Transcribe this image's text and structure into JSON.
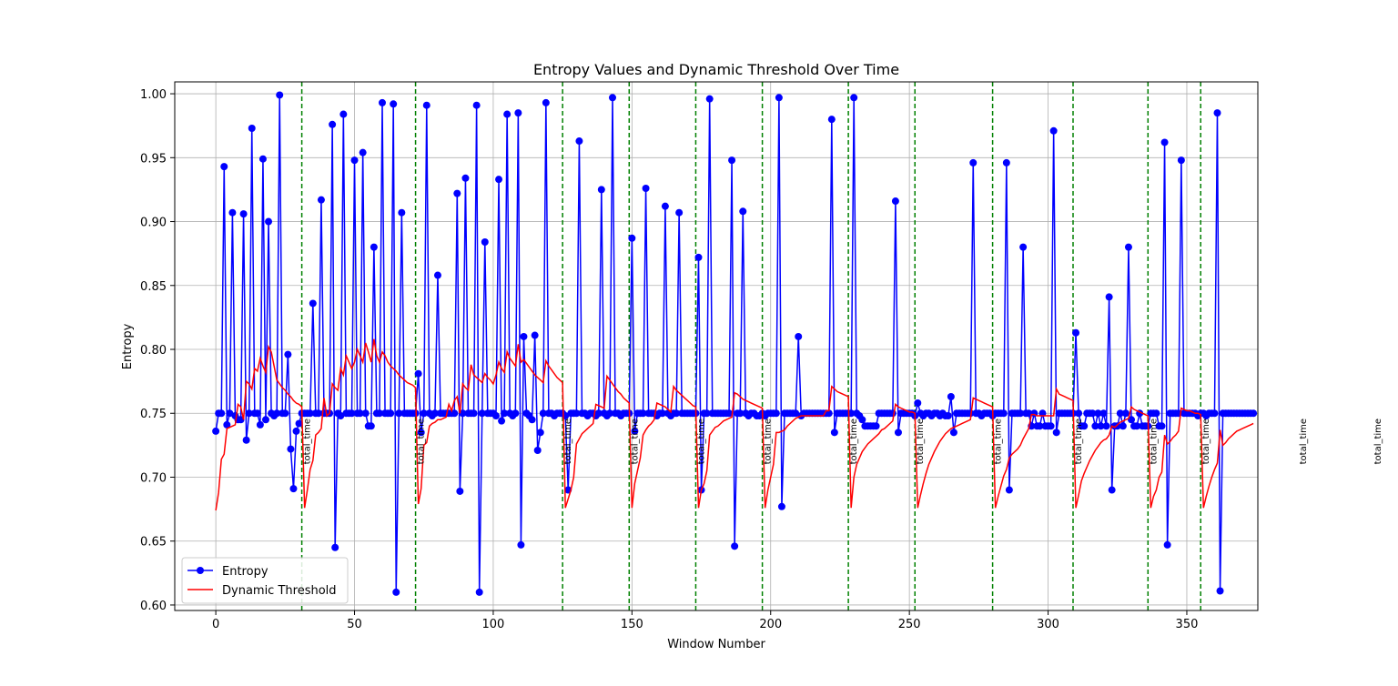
{
  "chart_data": {
    "type": "line",
    "title": "Entropy Values and Dynamic Threshold Over Time",
    "x_label": "Window Number",
    "y_label": "Entropy",
    "xlim": [
      -14.8,
      375.6
    ],
    "ylim": [
      0.5957,
      1.0093
    ],
    "xticks": [
      0,
      50,
      100,
      150,
      200,
      250,
      300,
      350
    ],
    "yticks": [
      {
        "value": 0.6,
        "label": "0.60"
      },
      {
        "value": 0.65,
        "label": "0.65"
      },
      {
        "value": 0.7,
        "label": "0.70"
      },
      {
        "value": 0.75,
        "label": "0.75"
      },
      {
        "value": 0.8,
        "label": "0.80"
      },
      {
        "value": 0.85,
        "label": "0.85"
      },
      {
        "value": 0.9,
        "label": "0.90"
      },
      {
        "value": 0.95,
        "label": "0.95"
      },
      {
        "value": 1.0,
        "label": "1.00"
      }
    ],
    "grid": true,
    "legend": "lower left",
    "x": [
      0,
      1,
      2,
      3,
      4,
      5,
      6,
      7,
      8,
      9,
      10,
      11,
      12,
      13,
      14,
      15,
      16,
      17,
      18,
      19,
      20,
      21,
      22,
      23,
      24,
      25,
      26,
      27,
      28,
      29,
      30,
      31,
      32,
      33,
      34,
      35,
      36,
      37,
      38,
      39,
      40,
      41,
      42,
      43,
      44,
      45,
      46,
      47,
      48,
      49,
      50,
      51,
      52,
      53,
      54,
      55,
      56,
      57,
      58,
      59,
      60,
      61,
      62,
      63,
      64,
      65,
      66,
      67,
      68,
      69,
      70,
      71,
      72,
      73,
      74,
      75,
      76,
      77,
      78,
      79,
      80,
      81,
      82,
      83,
      84,
      85,
      86,
      87,
      88,
      89,
      90,
      91,
      92,
      93,
      94,
      95,
      96,
      97,
      98,
      99,
      100,
      101,
      102,
      103,
      104,
      105,
      106,
      107,
      108,
      109,
      110,
      111,
      112,
      113,
      114,
      115,
      116,
      117,
      118,
      119,
      120,
      121,
      122,
      123,
      124,
      125,
      126,
      127,
      128,
      129,
      130,
      131,
      132,
      133,
      134,
      135,
      136,
      137,
      138,
      139,
      140,
      141,
      142,
      143,
      144,
      145,
      146,
      147,
      148,
      149,
      150,
      151,
      152,
      153,
      154,
      155,
      156,
      157,
      158,
      159,
      160,
      161,
      162,
      163,
      164,
      165,
      166,
      167,
      168,
      169,
      170,
      171,
      172,
      173,
      174,
      175,
      176,
      177,
      178,
      179,
      180,
      181,
      182,
      183,
      184,
      185,
      186,
      187,
      188,
      189,
      190,
      191,
      192,
      193,
      194,
      195,
      196,
      197,
      198,
      199,
      200,
      201,
      202,
      203,
      204,
      205,
      206,
      207,
      208,
      209,
      210,
      211,
      212,
      213,
      214,
      215,
      216,
      217,
      218,
      219,
      220,
      221,
      222,
      223,
      224,
      225,
      226,
      227,
      228,
      229,
      230,
      231,
      232,
      233,
      234,
      235,
      236,
      237,
      238,
      239,
      240,
      241,
      242,
      243,
      244,
      245,
      246,
      247,
      248,
      249,
      250,
      251,
      252,
      253,
      254,
      255,
      256,
      257,
      258,
      259,
      260,
      261,
      262,
      263,
      264,
      265,
      266,
      267,
      268,
      269,
      270,
      271,
      272,
      273,
      274,
      275,
      276,
      277,
      278,
      279,
      280,
      281,
      282,
      283,
      284,
      285,
      286,
      287,
      288,
      289,
      290,
      291,
      292,
      293,
      294,
      295,
      296,
      297,
      298,
      299,
      300,
      301,
      302,
      303,
      304,
      305,
      306,
      307,
      308,
      309,
      310,
      311,
      312,
      313,
      314,
      315,
      316,
      317,
      318,
      319,
      320,
      321,
      322,
      323,
      324,
      325,
      326,
      327,
      328,
      329,
      330,
      331,
      332,
      333,
      334,
      335,
      336,
      337,
      338,
      339,
      340,
      341,
      342,
      343,
      344,
      345,
      346,
      347,
      348,
      349,
      350,
      351,
      352,
      353,
      354,
      355,
      356,
      357,
      358,
      359,
      360,
      361,
      362,
      363,
      364,
      365,
      366,
      367,
      368,
      369,
      370,
      371,
      372,
      373,
      374
    ],
    "series": [
      {
        "name": "Entropy",
        "color": "#0000ff",
        "marker": true,
        "values": [
          0.736,
          0.75,
          0.75,
          0.943,
          0.741,
          0.75,
          0.907,
          0.748,
          0.745,
          0.745,
          0.906,
          0.729,
          0.75,
          0.973,
          0.75,
          0.75,
          0.741,
          0.949,
          0.745,
          0.9,
          0.75,
          0.748,
          0.75,
          0.999,
          0.75,
          0.75,
          0.796,
          0.722,
          0.691,
          0.736,
          0.742,
          0.75,
          0.75,
          0.75,
          0.75,
          0.836,
          0.75,
          0.75,
          0.917,
          0.75,
          0.75,
          0.75,
          0.976,
          0.645,
          0.75,
          0.748,
          0.984,
          0.75,
          0.75,
          0.75,
          0.948,
          0.75,
          0.75,
          0.954,
          0.75,
          0.74,
          0.74,
          0.88,
          0.75,
          0.75,
          0.993,
          0.75,
          0.75,
          0.75,
          0.992,
          0.61,
          0.75,
          0.907,
          0.75,
          0.75,
          0.75,
          0.75,
          0.75,
          0.781,
          0.735,
          0.75,
          0.991,
          0.75,
          0.748,
          0.75,
          0.858,
          0.75,
          0.75,
          0.75,
          0.75,
          0.75,
          0.75,
          0.922,
          0.689,
          0.75,
          0.934,
          0.75,
          0.75,
          0.75,
          0.991,
          0.61,
          0.75,
          0.884,
          0.75,
          0.75,
          0.75,
          0.748,
          0.933,
          0.744,
          0.75,
          0.984,
          0.75,
          0.748,
          0.75,
          0.985,
          0.647,
          0.81,
          0.75,
          0.748,
          0.745,
          0.811,
          0.721,
          0.735,
          0.75,
          0.993,
          0.75,
          0.75,
          0.748,
          0.75,
          0.75,
          0.75,
          0.748,
          0.69,
          0.75,
          0.75,
          0.75,
          0.963,
          0.75,
          0.75,
          0.748,
          0.75,
          0.75,
          0.748,
          0.75,
          0.925,
          0.75,
          0.748,
          0.75,
          0.997,
          0.75,
          0.75,
          0.748,
          0.75,
          0.75,
          0.75,
          0.887,
          0.736,
          0.75,
          0.75,
          0.75,
          0.926,
          0.75,
          0.75,
          0.75,
          0.748,
          0.75,
          0.75,
          0.912,
          0.75,
          0.748,
          0.75,
          0.75,
          0.907,
          0.75,
          0.75,
          0.75,
          0.75,
          0.75,
          0.75,
          0.872,
          0.69,
          0.75,
          0.75,
          0.996,
          0.75,
          0.75,
          0.75,
          0.75,
          0.75,
          0.75,
          0.75,
          0.948,
          0.646,
          0.75,
          0.75,
          0.908,
          0.75,
          0.748,
          0.75,
          0.75,
          0.748,
          0.748,
          0.75,
          0.748,
          0.75,
          0.75,
          0.75,
          0.75,
          0.997,
          0.677,
          0.75,
          0.75,
          0.75,
          0.75,
          0.75,
          0.81,
          0.748,
          0.75,
          0.75,
          0.75,
          0.75,
          0.75,
          0.75,
          0.75,
          0.75,
          0.75,
          0.75,
          0.98,
          0.735,
          0.75,
          0.75,
          0.75,
          0.75,
          0.75,
          0.75,
          0.997,
          0.75,
          0.748,
          0.745,
          0.74,
          0.74,
          0.74,
          0.74,
          0.74,
          0.75,
          0.75,
          0.75,
          0.75,
          0.75,
          0.75,
          0.916,
          0.735,
          0.75,
          0.75,
          0.75,
          0.75,
          0.75,
          0.748,
          0.758,
          0.75,
          0.748,
          0.75,
          0.75,
          0.748,
          0.75,
          0.75,
          0.748,
          0.75,
          0.748,
          0.748,
          0.763,
          0.735,
          0.75,
          0.75,
          0.75,
          0.75,
          0.75,
          0.75,
          0.946,
          0.75,
          0.75,
          0.748,
          0.75,
          0.75,
          0.75,
          0.748,
          0.75,
          0.75,
          0.75,
          0.75,
          0.946,
          0.69,
          0.75,
          0.75,
          0.75,
          0.75,
          0.88,
          0.75,
          0.75,
          0.74,
          0.75,
          0.74,
          0.74,
          0.75,
          0.74,
          0.74,
          0.74,
          0.971,
          0.735,
          0.75,
          0.75,
          0.75,
          0.75,
          0.75,
          0.75,
          0.813,
          0.75,
          0.74,
          0.74,
          0.75,
          0.75,
          0.75,
          0.74,
          0.75,
          0.74,
          0.75,
          0.74,
          0.841,
          0.69,
          0.74,
          0.74,
          0.75,
          0.74,
          0.75,
          0.88,
          0.745,
          0.74,
          0.74,
          0.75,
          0.74,
          0.74,
          0.74,
          0.75,
          0.75,
          0.75,
          0.74,
          0.74,
          0.962,
          0.647,
          0.75,
          0.75,
          0.75,
          0.75,
          0.948,
          0.75,
          0.75,
          0.75,
          0.75,
          0.75,
          0.748,
          0.75,
          0.75,
          0.748,
          0.75,
          0.75,
          0.75,
          0.985,
          0.611,
          0.75,
          0.75,
          0.75,
          0.75,
          0.75,
          0.75,
          0.75,
          0.75,
          0.75,
          0.75,
          0.75,
          0.75
        ]
      },
      {
        "name": "Dynamic Threshold",
        "color": "#ff0000",
        "marker": false,
        "values": [
          0.674,
          0.688,
          0.714,
          0.718,
          0.738,
          0.739,
          0.74,
          0.741,
          0.757,
          0.755,
          0.745,
          0.775,
          0.773,
          0.769,
          0.785,
          0.783,
          0.793,
          0.787,
          0.782,
          0.802,
          0.798,
          0.787,
          0.776,
          0.773,
          0.77,
          0.768,
          0.765,
          0.763,
          0.76,
          0.758,
          0.757,
          0.755,
          0.676,
          0.69,
          0.706,
          0.713,
          0.733,
          0.735,
          0.738,
          0.762,
          0.748,
          0.75,
          0.773,
          0.77,
          0.768,
          0.785,
          0.78,
          0.795,
          0.79,
          0.785,
          0.79,
          0.8,
          0.795,
          0.79,
          0.805,
          0.798,
          0.79,
          0.808,
          0.795,
          0.79,
          0.798,
          0.795,
          0.79,
          0.787,
          0.785,
          0.783,
          0.78,
          0.778,
          0.776,
          0.774,
          0.773,
          0.772,
          0.77,
          0.679,
          0.691,
          0.725,
          0.727,
          0.74,
          0.742,
          0.743,
          0.745,
          0.745,
          0.746,
          0.747,
          0.757,
          0.752,
          0.76,
          0.763,
          0.75,
          0.773,
          0.77,
          0.768,
          0.788,
          0.78,
          0.778,
          0.776,
          0.774,
          0.781,
          0.778,
          0.776,
          0.773,
          0.78,
          0.79,
          0.785,
          0.782,
          0.798,
          0.793,
          0.79,
          0.787,
          0.804,
          0.79,
          0.792,
          0.789,
          0.786,
          0.783,
          0.78,
          0.778,
          0.776,
          0.774,
          0.791,
          0.787,
          0.784,
          0.781,
          0.778,
          0.776,
          0.774,
          0.676,
          0.683,
          0.69,
          0.7,
          0.726,
          0.73,
          0.734,
          0.736,
          0.738,
          0.74,
          0.742,
          0.757,
          0.756,
          0.755,
          0.754,
          0.779,
          0.776,
          0.773,
          0.77,
          0.767,
          0.765,
          0.762,
          0.76,
          0.758,
          0.676,
          0.695,
          0.705,
          0.715,
          0.733,
          0.737,
          0.74,
          0.742,
          0.745,
          0.758,
          0.757,
          0.756,
          0.755,
          0.753,
          0.751,
          0.771,
          0.768,
          0.766,
          0.764,
          0.762,
          0.76,
          0.758,
          0.756,
          0.755,
          0.676,
          0.69,
          0.695,
          0.705,
          0.733,
          0.736,
          0.739,
          0.74,
          0.742,
          0.744,
          0.745,
          0.746,
          0.747,
          0.766,
          0.765,
          0.763,
          0.761,
          0.76,
          0.759,
          0.758,
          0.757,
          0.756,
          0.755,
          0.754,
          0.676,
          0.69,
          0.7,
          0.71,
          0.735,
          0.735,
          0.736,
          0.737,
          0.74,
          0.742,
          0.744,
          0.746,
          0.747,
          0.748,
          0.748,
          0.748,
          0.748,
          0.748,
          0.748,
          0.748,
          0.748,
          0.748,
          0.752,
          0.752,
          0.771,
          0.769,
          0.767,
          0.766,
          0.765,
          0.764,
          0.763,
          0.676,
          0.7,
          0.71,
          0.715,
          0.72,
          0.723,
          0.726,
          0.728,
          0.73,
          0.732,
          0.734,
          0.737,
          0.738,
          0.74,
          0.742,
          0.744,
          0.757,
          0.755,
          0.754,
          0.753,
          0.752,
          0.751,
          0.751,
          0.75,
          0.676,
          0.686,
          0.695,
          0.703,
          0.71,
          0.715,
          0.72,
          0.724,
          0.728,
          0.731,
          0.734,
          0.736,
          0.738,
          0.739,
          0.74,
          0.741,
          0.742,
          0.743,
          0.744,
          0.745,
          0.762,
          0.761,
          0.76,
          0.759,
          0.758,
          0.757,
          0.756,
          0.755,
          0.676,
          0.685,
          0.693,
          0.701,
          0.706,
          0.715,
          0.718,
          0.72,
          0.722,
          0.725,
          0.73,
          0.734,
          0.738,
          0.749,
          0.749,
          0.748,
          0.748,
          0.748,
          0.748,
          0.748,
          0.748,
          0.748,
          0.769,
          0.765,
          0.764,
          0.763,
          0.762,
          0.761,
          0.76,
          0.676,
          0.686,
          0.697,
          0.703,
          0.708,
          0.713,
          0.717,
          0.721,
          0.724,
          0.727,
          0.729,
          0.73,
          0.733,
          0.74,
          0.739,
          0.741,
          0.743,
          0.744,
          0.745,
          0.746,
          0.755,
          0.753,
          0.752,
          0.751,
          0.75,
          0.749,
          0.748,
          0.676,
          0.685,
          0.69,
          0.7,
          0.704,
          0.733,
          0.726,
          0.728,
          0.731,
          0.733,
          0.736,
          0.754,
          0.753,
          0.752,
          0.752,
          0.751,
          0.75,
          0.75,
          0.749,
          0.676,
          0.685,
          0.693,
          0.7,
          0.706,
          0.711,
          0.737,
          0.725,
          0.727,
          0.73,
          0.732,
          0.734,
          0.736,
          0.737,
          0.738,
          0.739,
          0.74,
          0.741,
          0.742
        ]
      }
    ],
    "annotations": [
      {
        "x": 31,
        "label": "total_time"
      },
      {
        "x": 72,
        "label": "total_time"
      },
      {
        "x": 125,
        "label": "total_time"
      },
      {
        "x": 149,
        "label": "total_time"
      },
      {
        "x": 173,
        "label": "total_time"
      },
      {
        "x": 197,
        "label": "total_time"
      },
      {
        "x": 228,
        "label": "total_time"
      },
      {
        "x": 252,
        "label": "total_time"
      },
      {
        "x": 280,
        "label": "total_time"
      },
      {
        "x": 309,
        "label": "total_time"
      },
      {
        "x": 336,
        "label": "total_time"
      },
      {
        "x": 355,
        "label": "total_time"
      },
      {
        "x": 390,
        "label": "total_time"
      },
      {
        "x": 417,
        "label": "total_time"
      }
    ],
    "annotation_color": "#008000"
  }
}
